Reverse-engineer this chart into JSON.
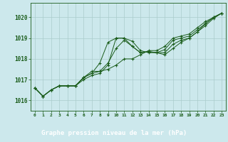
{
  "title": "Graphe pression niveau de la mer (hPa)",
  "background_color": "#cce8ec",
  "plot_bg_color": "#cce8ec",
  "label_bg_color": "#2d6a2d",
  "label_text_color": "#ffffff",
  "grid_color": "#aacccc",
  "line_color": "#1a5c1a",
  "xlim": [
    -0.5,
    23.5
  ],
  "ylim": [
    1015.5,
    1020.7
  ],
  "yticks": [
    1016,
    1017,
    1018,
    1019,
    1020
  ],
  "xticks": [
    0,
    1,
    2,
    3,
    4,
    5,
    6,
    7,
    8,
    9,
    10,
    11,
    12,
    13,
    14,
    15,
    16,
    17,
    18,
    19,
    20,
    21,
    22,
    23
  ],
  "series": [
    [
      1016.6,
      1016.2,
      1016.5,
      1016.7,
      1016.7,
      1016.7,
      1017.0,
      1017.2,
      1017.3,
      1017.7,
      1019.0,
      1019.0,
      1018.85,
      1018.4,
      1018.3,
      1018.3,
      1018.2,
      1018.5,
      1018.8,
      1019.0,
      1019.3,
      1019.6,
      1019.95,
      1020.2
    ],
    [
      1016.6,
      1016.2,
      1016.5,
      1016.7,
      1016.7,
      1016.7,
      1017.1,
      1017.3,
      1017.4,
      1017.8,
      1018.5,
      1018.9,
      1018.6,
      1018.3,
      1018.35,
      1018.3,
      1018.3,
      1018.7,
      1018.9,
      1019.0,
      1019.3,
      1019.7,
      1020.0,
      1020.2
    ],
    [
      1016.6,
      1016.2,
      1016.5,
      1016.7,
      1016.7,
      1016.7,
      1017.1,
      1017.3,
      1017.8,
      1018.8,
      1019.0,
      1019.0,
      1018.6,
      1018.3,
      1018.35,
      1018.3,
      1018.45,
      1018.9,
      1019.0,
      1019.1,
      1019.4,
      1019.7,
      1020.0,
      1020.2
    ],
    [
      1016.6,
      1016.2,
      1016.5,
      1016.7,
      1016.7,
      1016.7,
      1017.1,
      1017.4,
      1017.4,
      1017.5,
      1017.7,
      1018.0,
      1018.0,
      1018.2,
      1018.4,
      1018.4,
      1018.6,
      1019.0,
      1019.1,
      1019.2,
      1019.5,
      1019.8,
      1020.0,
      1020.2
    ]
  ]
}
